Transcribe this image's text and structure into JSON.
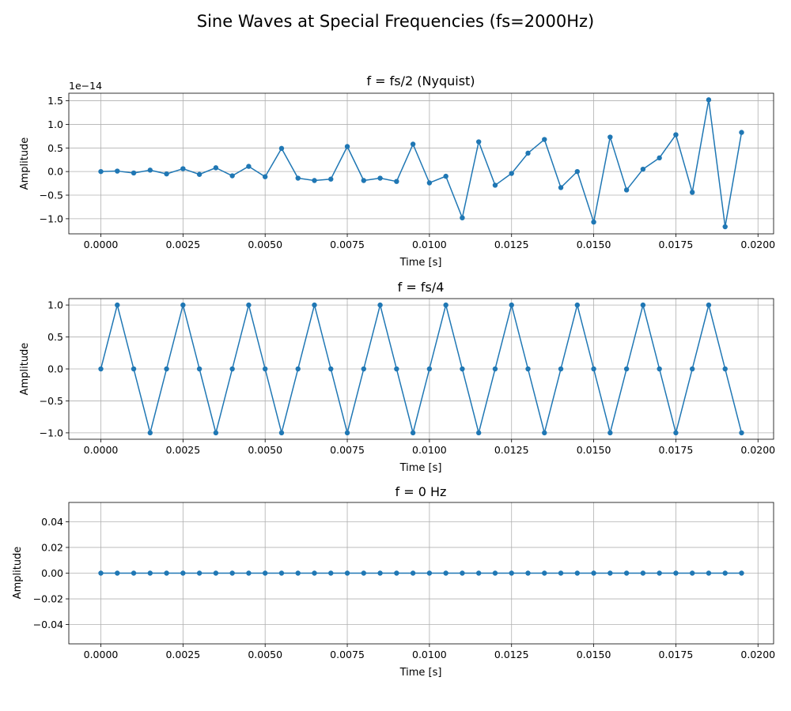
{
  "figure": {
    "suptitle": "Sine Waves at Special Frequencies (fs=2000Hz)"
  },
  "chart_data": [
    {
      "type": "line",
      "title": "f = fs/2 (Nyquist)",
      "xlabel": "Time [s]",
      "ylabel": "Amplitude",
      "series_color": "#1f77b4",
      "marker": "circle",
      "grid": true,
      "xlim": [
        -0.000975,
        0.020475
      ],
      "ylim": [
        -1.32,
        1.66
      ],
      "y_scale_label": "1e−14",
      "x_ticks": [
        {
          "value": 0.0,
          "label": "0.0000"
        },
        {
          "value": 0.0025,
          "label": "0.0025"
        },
        {
          "value": 0.005,
          "label": "0.0050"
        },
        {
          "value": 0.0075,
          "label": "0.0075"
        },
        {
          "value": 0.01,
          "label": "0.0100"
        },
        {
          "value": 0.0125,
          "label": "0.0125"
        },
        {
          "value": 0.015,
          "label": "0.0150"
        },
        {
          "value": 0.0175,
          "label": "0.0175"
        },
        {
          "value": 0.02,
          "label": "0.0200"
        }
      ],
      "y_ticks": [
        {
          "value": -1.0,
          "label": "−1.0"
        },
        {
          "value": -0.5,
          "label": "−0.5"
        },
        {
          "value": 0.0,
          "label": "0.0"
        },
        {
          "value": 0.5,
          "label": "0.5"
        },
        {
          "value": 1.0,
          "label": "1.0"
        },
        {
          "value": 1.5,
          "label": "1.5"
        }
      ],
      "x": [
        0,
        0.0005,
        0.001,
        0.0015,
        0.002,
        0.0025,
        0.003,
        0.0035,
        0.004,
        0.0045,
        0.005,
        0.0055,
        0.006,
        0.0065,
        0.007,
        0.0075,
        0.008,
        0.0085,
        0.009,
        0.0095,
        0.01,
        0.0105,
        0.011,
        0.0115,
        0.012,
        0.0125,
        0.013,
        0.0135,
        0.014,
        0.0145,
        0.015,
        0.0155,
        0.016,
        0.0165,
        0.017,
        0.0175,
        0.018,
        0.0185,
        0.019,
        0.0195
      ],
      "y": [
        0.0,
        0.01,
        -0.03,
        0.03,
        -0.05,
        0.06,
        -0.06,
        0.08,
        -0.09,
        0.11,
        -0.11,
        0.49,
        -0.14,
        -0.19,
        -0.16,
        0.53,
        -0.19,
        -0.14,
        -0.21,
        0.58,
        -0.24,
        -0.1,
        -0.98,
        0.63,
        -0.29,
        -0.04,
        0.39,
        0.68,
        -0.34,
        0.0,
        -1.07,
        0.73,
        -0.39,
        0.05,
        0.29,
        0.78,
        -0.44,
        1.52,
        -1.17,
        0.83
      ]
    },
    {
      "type": "line",
      "title": "f = fs/4",
      "xlabel": "Time [s]",
      "ylabel": "Amplitude",
      "series_color": "#1f77b4",
      "marker": "circle",
      "grid": true,
      "xlim": [
        -0.000975,
        0.020475
      ],
      "ylim": [
        -1.1,
        1.1
      ],
      "x_ticks": [
        {
          "value": 0.0,
          "label": "0.0000"
        },
        {
          "value": 0.0025,
          "label": "0.0025"
        },
        {
          "value": 0.005,
          "label": "0.0050"
        },
        {
          "value": 0.0075,
          "label": "0.0075"
        },
        {
          "value": 0.01,
          "label": "0.0100"
        },
        {
          "value": 0.0125,
          "label": "0.0125"
        },
        {
          "value": 0.015,
          "label": "0.0150"
        },
        {
          "value": 0.0175,
          "label": "0.0175"
        },
        {
          "value": 0.02,
          "label": "0.0200"
        }
      ],
      "y_ticks": [
        {
          "value": -1.0,
          "label": "−1.0"
        },
        {
          "value": -0.5,
          "label": "−0.5"
        },
        {
          "value": 0.0,
          "label": "0.0"
        },
        {
          "value": 0.5,
          "label": "0.5"
        },
        {
          "value": 1.0,
          "label": "1.0"
        }
      ],
      "x": [
        0,
        0.0005,
        0.001,
        0.0015,
        0.002,
        0.0025,
        0.003,
        0.0035,
        0.004,
        0.0045,
        0.005,
        0.0055,
        0.006,
        0.0065,
        0.007,
        0.0075,
        0.008,
        0.0085,
        0.009,
        0.0095,
        0.01,
        0.0105,
        0.011,
        0.0115,
        0.012,
        0.0125,
        0.013,
        0.0135,
        0.014,
        0.0145,
        0.015,
        0.0155,
        0.016,
        0.0165,
        0.017,
        0.0175,
        0.018,
        0.0185,
        0.019,
        0.0195
      ],
      "y": [
        0,
        1,
        0,
        -1,
        0,
        1,
        0,
        -1,
        0,
        1,
        0,
        -1,
        0,
        1,
        0,
        -1,
        0,
        1,
        0,
        -1,
        0,
        1,
        0,
        -1,
        0,
        1,
        0,
        -1,
        0,
        1,
        0,
        -1,
        0,
        1,
        0,
        -1,
        0,
        1,
        0,
        -1
      ]
    },
    {
      "type": "line",
      "title": "f = 0 Hz",
      "xlabel": "Time [s]",
      "ylabel": "Amplitude",
      "series_color": "#1f77b4",
      "marker": "circle",
      "grid": true,
      "xlim": [
        -0.000975,
        0.020475
      ],
      "ylim": [
        -0.055,
        0.055
      ],
      "x_ticks": [
        {
          "value": 0.0,
          "label": "0.0000"
        },
        {
          "value": 0.0025,
          "label": "0.0025"
        },
        {
          "value": 0.005,
          "label": "0.0050"
        },
        {
          "value": 0.0075,
          "label": "0.0075"
        },
        {
          "value": 0.01,
          "label": "0.0100"
        },
        {
          "value": 0.0125,
          "label": "0.0125"
        },
        {
          "value": 0.015,
          "label": "0.0150"
        },
        {
          "value": 0.0175,
          "label": "0.0175"
        },
        {
          "value": 0.02,
          "label": "0.0200"
        }
      ],
      "y_ticks": [
        {
          "value": -0.04,
          "label": "−0.04"
        },
        {
          "value": -0.02,
          "label": "−0.02"
        },
        {
          "value": 0.0,
          "label": "0.00"
        },
        {
          "value": 0.02,
          "label": "0.02"
        },
        {
          "value": 0.04,
          "label": "0.04"
        }
      ],
      "x": [
        0,
        0.0005,
        0.001,
        0.0015,
        0.002,
        0.0025,
        0.003,
        0.0035,
        0.004,
        0.0045,
        0.005,
        0.0055,
        0.006,
        0.0065,
        0.007,
        0.0075,
        0.008,
        0.0085,
        0.009,
        0.0095,
        0.01,
        0.0105,
        0.011,
        0.0115,
        0.012,
        0.0125,
        0.013,
        0.0135,
        0.014,
        0.0145,
        0.015,
        0.0155,
        0.016,
        0.0165,
        0.017,
        0.0175,
        0.018,
        0.0185,
        0.019,
        0.0195
      ],
      "y": [
        0,
        0,
        0,
        0,
        0,
        0,
        0,
        0,
        0,
        0,
        0,
        0,
        0,
        0,
        0,
        0,
        0,
        0,
        0,
        0,
        0,
        0,
        0,
        0,
        0,
        0,
        0,
        0,
        0,
        0,
        0,
        0,
        0,
        0,
        0,
        0,
        0,
        0,
        0,
        0
      ]
    }
  ]
}
